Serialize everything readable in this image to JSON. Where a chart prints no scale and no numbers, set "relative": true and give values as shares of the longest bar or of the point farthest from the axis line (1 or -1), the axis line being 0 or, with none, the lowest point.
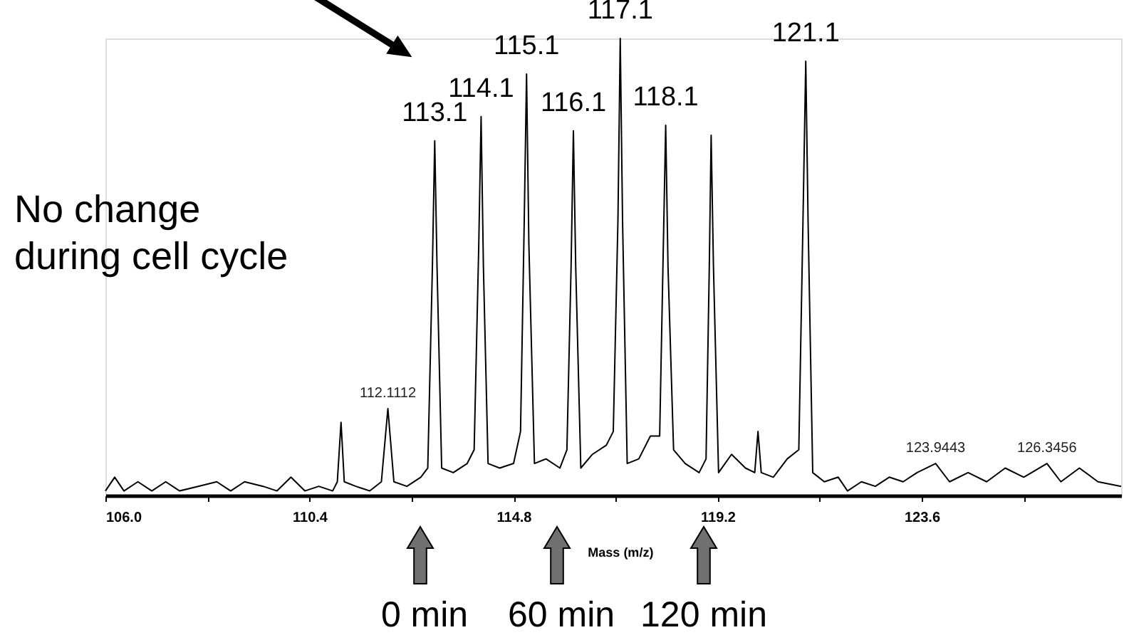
{
  "chart_data": {
    "type": "line",
    "relative": true,
    "xlabel": "Mass (m/z)",
    "xlim": [
      106,
      127.9
    ],
    "xticks": [
      {
        "value": 106,
        "label": "106.0"
      },
      {
        "value": 108.2,
        "label": null
      },
      {
        "value": 110.4,
        "label": "110.4"
      },
      {
        "value": 112.6,
        "label": null
      },
      {
        "value": 114.8,
        "label": "114.8"
      },
      {
        "value": 117.0,
        "label": null
      },
      {
        "value": 119.2,
        "label": "119.2"
      },
      {
        "value": 121.4,
        "label": null
      },
      {
        "value": 123.6,
        "label": "123.6"
      },
      {
        "value": 125.8,
        "label": null
      }
    ],
    "grid": false,
    "marker": "none",
    "line_style": "solid",
    "series": [
      {
        "color": "#000000",
        "x": [
          106.0,
          106.2,
          106.4,
          106.7,
          107.0,
          107.3,
          107.6,
          108.0,
          108.4,
          108.7,
          109.0,
          109.4,
          109.7,
          110.0,
          110.3,
          110.6,
          110.9,
          111.0,
          111.08,
          111.15,
          111.4,
          111.7,
          111.95,
          112.09,
          112.22,
          112.5,
          112.8,
          112.95,
          113.05,
          113.1,
          113.15,
          113.25,
          113.5,
          113.8,
          113.95,
          114.05,
          114.1,
          114.15,
          114.25,
          114.5,
          114.8,
          114.95,
          115.03,
          115.08,
          115.13,
          115.25,
          115.5,
          115.8,
          115.95,
          116.04,
          116.09,
          116.14,
          116.25,
          116.5,
          116.8,
          116.95,
          117.05,
          117.1,
          117.15,
          117.25,
          117.5,
          117.75,
          117.95,
          118.03,
          118.08,
          118.13,
          118.25,
          118.5,
          118.8,
          118.95,
          119.02,
          119.06,
          119.11,
          119.22,
          119.5,
          119.8,
          120.0,
          120.07,
          120.14,
          120.4,
          120.7,
          120.95,
          121.04,
          121.1,
          121.15,
          121.25,
          121.5,
          121.8,
          122.0,
          122.3,
          122.6,
          122.9,
          123.2,
          123.5,
          123.9,
          124.2,
          124.6,
          125.0,
          125.4,
          125.8,
          126.3,
          126.6,
          127.0,
          127.4,
          127.9
        ],
        "values": [
          0.01,
          0.04,
          0.01,
          0.03,
          0.01,
          0.03,
          0.01,
          0.02,
          0.03,
          0.01,
          0.03,
          0.02,
          0.01,
          0.04,
          0.01,
          0.02,
          0.01,
          0.03,
          0.16,
          0.03,
          0.02,
          0.01,
          0.03,
          0.19,
          0.03,
          0.02,
          0.04,
          0.06,
          0.5,
          0.776,
          0.5,
          0.06,
          0.05,
          0.07,
          0.1,
          0.55,
          0.829,
          0.5,
          0.07,
          0.06,
          0.07,
          0.14,
          0.6,
          0.922,
          0.55,
          0.07,
          0.08,
          0.06,
          0.1,
          0.5,
          0.798,
          0.5,
          0.06,
          0.09,
          0.11,
          0.14,
          0.6,
          1,
          0.6,
          0.07,
          0.08,
          0.13,
          0.13,
          0.55,
          0.81,
          0.5,
          0.1,
          0.07,
          0.05,
          0.08,
          0.5,
          0.788,
          0.5,
          0.05,
          0.09,
          0.06,
          0.05,
          0.14,
          0.05,
          0.04,
          0.08,
          0.1,
          0.6,
          0.95,
          0.6,
          0.05,
          0.03,
          0.04,
          0.01,
          0.03,
          0.02,
          0.04,
          0.03,
          0.05,
          0.07,
          0.03,
          0.05,
          0.03,
          0.06,
          0.04,
          0.07,
          0.03,
          0.06,
          0.03,
          0.02
        ]
      }
    ],
    "annotations": [
      {
        "text": "112.1112",
        "x": 112.09,
        "y": 0.19
      },
      {
        "text": "113.1",
        "x": 113.1,
        "y": 0.776
      },
      {
        "text": "114.1",
        "x": 114.1,
        "y": 0.829
      },
      {
        "text": "115.1",
        "x": 115.08,
        "y": 0.922
      },
      {
        "text": "116.1",
        "x": 116.09,
        "y": 0.798
      },
      {
        "text": "117.1",
        "x": 117.1,
        "y": 1
      },
      {
        "text": "118.1",
        "x": 118.08,
        "y": 0.81
      },
      {
        "text": "121.1",
        "x": 121.1,
        "y": 0.95
      },
      {
        "text": "123.9443",
        "x": 123.9,
        "y": 0.07
      },
      {
        "text": "126.3456",
        "x": 126.3,
        "y": 0.07
      },
      "No change\nduring cell cycle",
      "0 min",
      "60 min",
      "120 min"
    ]
  }
}
